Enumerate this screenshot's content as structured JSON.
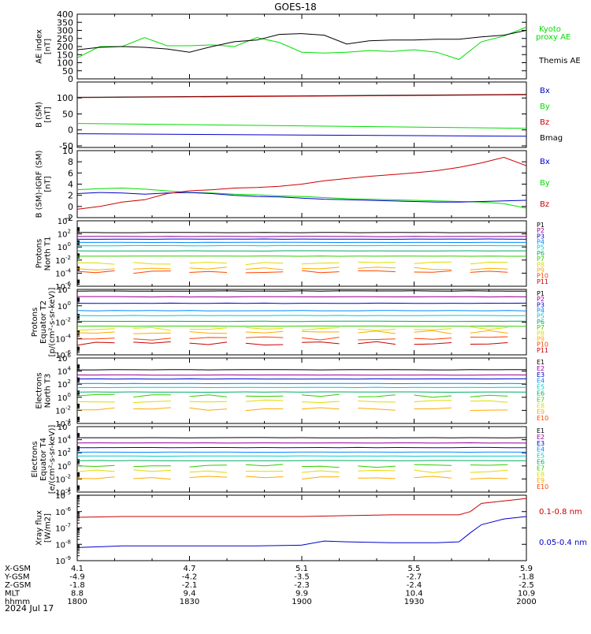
{
  "title": "GOES-18",
  "date_label": "2024 Jul 17",
  "orbit": {
    "rows": [
      {
        "label": "X-GSM",
        "values": [
          "4.1",
          "4.7",
          "5.1",
          "5.5",
          "5.9"
        ]
      },
      {
        "label": "Y-GSM",
        "values": [
          "-4.9",
          "-4.2",
          "-3.5",
          "-2.7",
          "-1.8"
        ]
      },
      {
        "label": "Z-GSM",
        "values": [
          "-1.8",
          "-2.1",
          "-2.3",
          "-2.4",
          "-2.5"
        ]
      },
      {
        "label": "MLT",
        "values": [
          "8.8",
          "9.4",
          "9.9",
          "10.4",
          "10.9"
        ]
      },
      {
        "label": "hhmm",
        "values": [
          "1800",
          "1830",
          "1900",
          "1930",
          "2000"
        ]
      }
    ]
  },
  "colors": {
    "black": "#000000",
    "green": "#00dd00",
    "blue": "#0000cc",
    "red": "#cc0000",
    "P": [
      "#000000",
      "#990099",
      "#0000cc",
      "#0088ff",
      "#00cccc",
      "#00aa66",
      "#33cc00",
      "#dddd00",
      "#ffaa00",
      "#ff4400",
      "#cc0000"
    ]
  },
  "chart_data": [
    {
      "id": "ae",
      "type": "line",
      "ylabel": [
        "AE index",
        "[nT]"
      ],
      "ylim": [
        0,
        400
      ],
      "yticks": [
        "0",
        "50",
        "100",
        "150",
        "200",
        "250",
        "300",
        "350",
        "400"
      ],
      "legend": [
        {
          "text": "Kyoto",
          "color": "#00dd00"
        },
        {
          "text": "proxy AE",
          "color": "#00dd00"
        },
        {
          "text": "Themis AE",
          "color": "#000000"
        }
      ],
      "series": [
        {
          "color": "#00dd00",
          "x": [
            18.0,
            18.1,
            18.2,
            18.3,
            18.4,
            18.5,
            18.6,
            18.7,
            18.8,
            18.9,
            19.0,
            19.1,
            19.2,
            19.3,
            19.4,
            19.5,
            19.6,
            19.7,
            19.8,
            19.9,
            20.0
          ],
          "y": [
            130,
            200,
            200,
            255,
            205,
            205,
            210,
            200,
            255,
            225,
            165,
            160,
            165,
            175,
            170,
            180,
            165,
            120,
            230,
            265,
            320
          ]
        },
        {
          "color": "#000000",
          "x": [
            18.0,
            18.1,
            18.2,
            18.3,
            18.4,
            18.5,
            18.6,
            18.7,
            18.8,
            18.9,
            19.0,
            19.1,
            19.2,
            19.3,
            19.4,
            19.5,
            19.6,
            19.7,
            19.8,
            19.9,
            20.0
          ],
          "y": [
            180,
            195,
            200,
            195,
            185,
            165,
            200,
            230,
            240,
            275,
            280,
            270,
            215,
            235,
            240,
            240,
            245,
            245,
            260,
            270,
            300
          ]
        }
      ]
    },
    {
      "id": "bsm",
      "type": "line",
      "ylabel": [
        "B (SM)",
        "[nT]"
      ],
      "ylim": [
        -55,
        150
      ],
      "yticks": [
        "-50",
        "0",
        "50",
        "100"
      ],
      "legend": [
        {
          "text": "Bx",
          "color": "#0000cc"
        },
        {
          "text": "By",
          "color": "#00dd00"
        },
        {
          "text": "Bz",
          "color": "#cc0000"
        },
        {
          "text": "Bmag",
          "color": "#000000"
        }
      ],
      "series": [
        {
          "color": "#000000",
          "x": [
            18.0,
            20.0
          ],
          "y": [
            102,
            111
          ]
        },
        {
          "color": "#cc0000",
          "x": [
            18.0,
            20.0
          ],
          "y": [
            101,
            110
          ]
        },
        {
          "color": "#00dd00",
          "x": [
            18.0,
            20.0
          ],
          "y": [
            20,
            5
          ]
        },
        {
          "color": "#0000cc",
          "x": [
            18.0,
            20.0
          ],
          "y": [
            -12,
            -20
          ]
        }
      ]
    },
    {
      "id": "bdiff",
      "type": "line",
      "ylabel": [
        "B (SM)-IGRF (SM)",
        "[nT]"
      ],
      "ylim": [
        -2,
        10
      ],
      "yticks": [
        "-2",
        "0",
        "2",
        "4",
        "6",
        "8",
        "10"
      ],
      "legend": [
        {
          "text": "Bx",
          "color": "#0000cc"
        },
        {
          "text": "By",
          "color": "#00dd00"
        },
        {
          "text": "Bz",
          "color": "#cc0000"
        }
      ],
      "series": [
        {
          "color": "#00dd00",
          "x": [
            18.0,
            18.1,
            18.2,
            18.3,
            18.4,
            18.5,
            18.6,
            18.7,
            18.8,
            18.9,
            19.0,
            19.1,
            19.2,
            19.3,
            19.4,
            19.5,
            19.6,
            19.7,
            19.8,
            19.9,
            20.0
          ],
          "y": [
            3.0,
            3.2,
            3.3,
            3.1,
            2.8,
            2.5,
            2.4,
            2.2,
            2.1,
            1.9,
            1.8,
            1.6,
            1.4,
            1.3,
            1.2,
            1.1,
            1.0,
            0.9,
            0.8,
            0.5,
            -0.3
          ]
        },
        {
          "color": "#0000cc",
          "x": [
            18.0,
            18.1,
            18.2,
            18.3,
            18.4,
            18.5,
            18.6,
            18.7,
            18.8,
            18.9,
            19.0,
            19.1,
            19.2,
            19.3,
            19.4,
            19.5,
            19.6,
            19.7,
            19.8,
            19.9,
            20.0
          ],
          "y": [
            2.3,
            2.5,
            2.4,
            2.2,
            2.4,
            2.5,
            2.3,
            2.0,
            1.8,
            1.7,
            1.5,
            1.3,
            1.2,
            1.1,
            1.0,
            0.9,
            0.8,
            0.8,
            0.9,
            1.0,
            1.1
          ]
        },
        {
          "color": "#cc0000",
          "x": [
            18.0,
            18.1,
            18.2,
            18.3,
            18.4,
            18.5,
            18.6,
            18.7,
            18.8,
            18.9,
            19.0,
            19.1,
            19.2,
            19.3,
            19.4,
            19.5,
            19.6,
            19.7,
            19.8,
            19.9,
            20.0
          ],
          "y": [
            -0.5,
            0.0,
            0.8,
            1.2,
            2.3,
            2.8,
            3.0,
            3.3,
            3.4,
            3.6,
            4.0,
            4.6,
            5.0,
            5.4,
            5.7,
            6.0,
            6.4,
            7.0,
            7.8,
            8.8,
            7.3
          ]
        }
      ]
    },
    {
      "id": "p1",
      "type": "line",
      "log": true,
      "ylabel": [
        "Protons",
        "North T1"
      ],
      "ylim": [
        -6,
        4
      ],
      "ytick_exps": [
        -6,
        -4,
        -2,
        0,
        2,
        4
      ],
      "channels": [
        "P1",
        "P2",
        "P3",
        "P4",
        "P5",
        "P6",
        "P7",
        "P8",
        "P9",
        "P10",
        "P11"
      ],
      "levels": [
        2.2,
        1.6,
        1.2,
        0.7,
        0.2,
        -0.6,
        -1.4,
        -2.5,
        -3.3,
        -3.8,
        null
      ]
    },
    {
      "id": "p2",
      "type": "line",
      "log": true,
      "ylabel": [
        "Protons",
        "Equator T2",
        "[p/(cm²-s-sr-keV)]"
      ],
      "ylim": [
        -6,
        2
      ],
      "ytick_exps": [
        -6,
        -4,
        -2,
        0,
        2
      ],
      "channels": [
        "P1",
        "P2",
        "P3",
        "P4",
        "P5",
        "P6",
        "P7",
        "P8",
        "P9",
        "P10",
        "P11"
      ],
      "levels": [
        1.8,
        1.1,
        0.3,
        -0.6,
        -1.2,
        -1.9,
        -2.5,
        -2.8,
        -3.2,
        -4.0,
        -4.6
      ]
    },
    {
      "id": "e1",
      "type": "line",
      "log": true,
      "ylabel": [
        "Electrons",
        "North T3"
      ],
      "ylim": [
        -4,
        6
      ],
      "ytick_exps": [
        -4,
        -2,
        0,
        2,
        4,
        6
      ],
      "channels": [
        "E1",
        "E2",
        "E3",
        "E4",
        "E5",
        "E6",
        "E7",
        "E8",
        "E9",
        "E10"
      ],
      "levels": [
        4.2,
        3.4,
        2.8,
        2.1,
        1.5,
        0.8,
        0.2,
        -0.6,
        -1.8,
        null
      ]
    },
    {
      "id": "e2",
      "type": "line",
      "log": true,
      "ylabel": [
        "Electrons",
        "Equator T4",
        "[e/(cm²-s-sr-keV)]"
      ],
      "ylim": [
        -4,
        6
      ],
      "ytick_exps": [
        -4,
        -2,
        0,
        2,
        4,
        6
      ],
      "channels": [
        "E1",
        "E2",
        "E3",
        "E4",
        "E5",
        "E6",
        "E7",
        "E8",
        "E9",
        "E10"
      ],
      "levels": [
        4.3,
        3.5,
        2.8,
        2.1,
        1.5,
        0.8,
        0.0,
        -0.8,
        -1.8,
        null
      ]
    },
    {
      "id": "xray",
      "type": "line",
      "log": true,
      "ylabel": [
        "Xray flux",
        "[W/m2]"
      ],
      "ylim": [
        -9,
        -5
      ],
      "ytick_exps": [
        -9,
        -8,
        -7,
        -6,
        -5
      ],
      "legend": [
        {
          "text": "0.1-0.8 nm",
          "color": "#cc0000"
        },
        {
          "text": "0.05-0.4 nm",
          "color": "#0000cc"
        }
      ],
      "series": [
        {
          "color": "#cc0000",
          "x": [
            18.0,
            18.2,
            18.4,
            18.6,
            18.8,
            19.0,
            19.2,
            19.4,
            19.6,
            19.7,
            19.75,
            19.8,
            19.9,
            20.0
          ],
          "y": [
            -6.35,
            -6.3,
            -6.3,
            -6.3,
            -6.3,
            -6.3,
            -6.25,
            -6.2,
            -6.2,
            -6.2,
            -6.0,
            -5.5,
            -5.35,
            -5.2
          ]
        },
        {
          "color": "#0000cc",
          "x": [
            18.0,
            18.2,
            18.4,
            18.6,
            18.8,
            19.0,
            19.1,
            19.2,
            19.4,
            19.6,
            19.7,
            19.75,
            19.8,
            19.9,
            20.0
          ],
          "y": [
            -8.2,
            -8.1,
            -8.1,
            -8.1,
            -8.1,
            -8.05,
            -7.8,
            -7.85,
            -7.9,
            -7.9,
            -7.85,
            -7.3,
            -6.8,
            -6.45,
            -6.3
          ]
        }
      ]
    }
  ]
}
